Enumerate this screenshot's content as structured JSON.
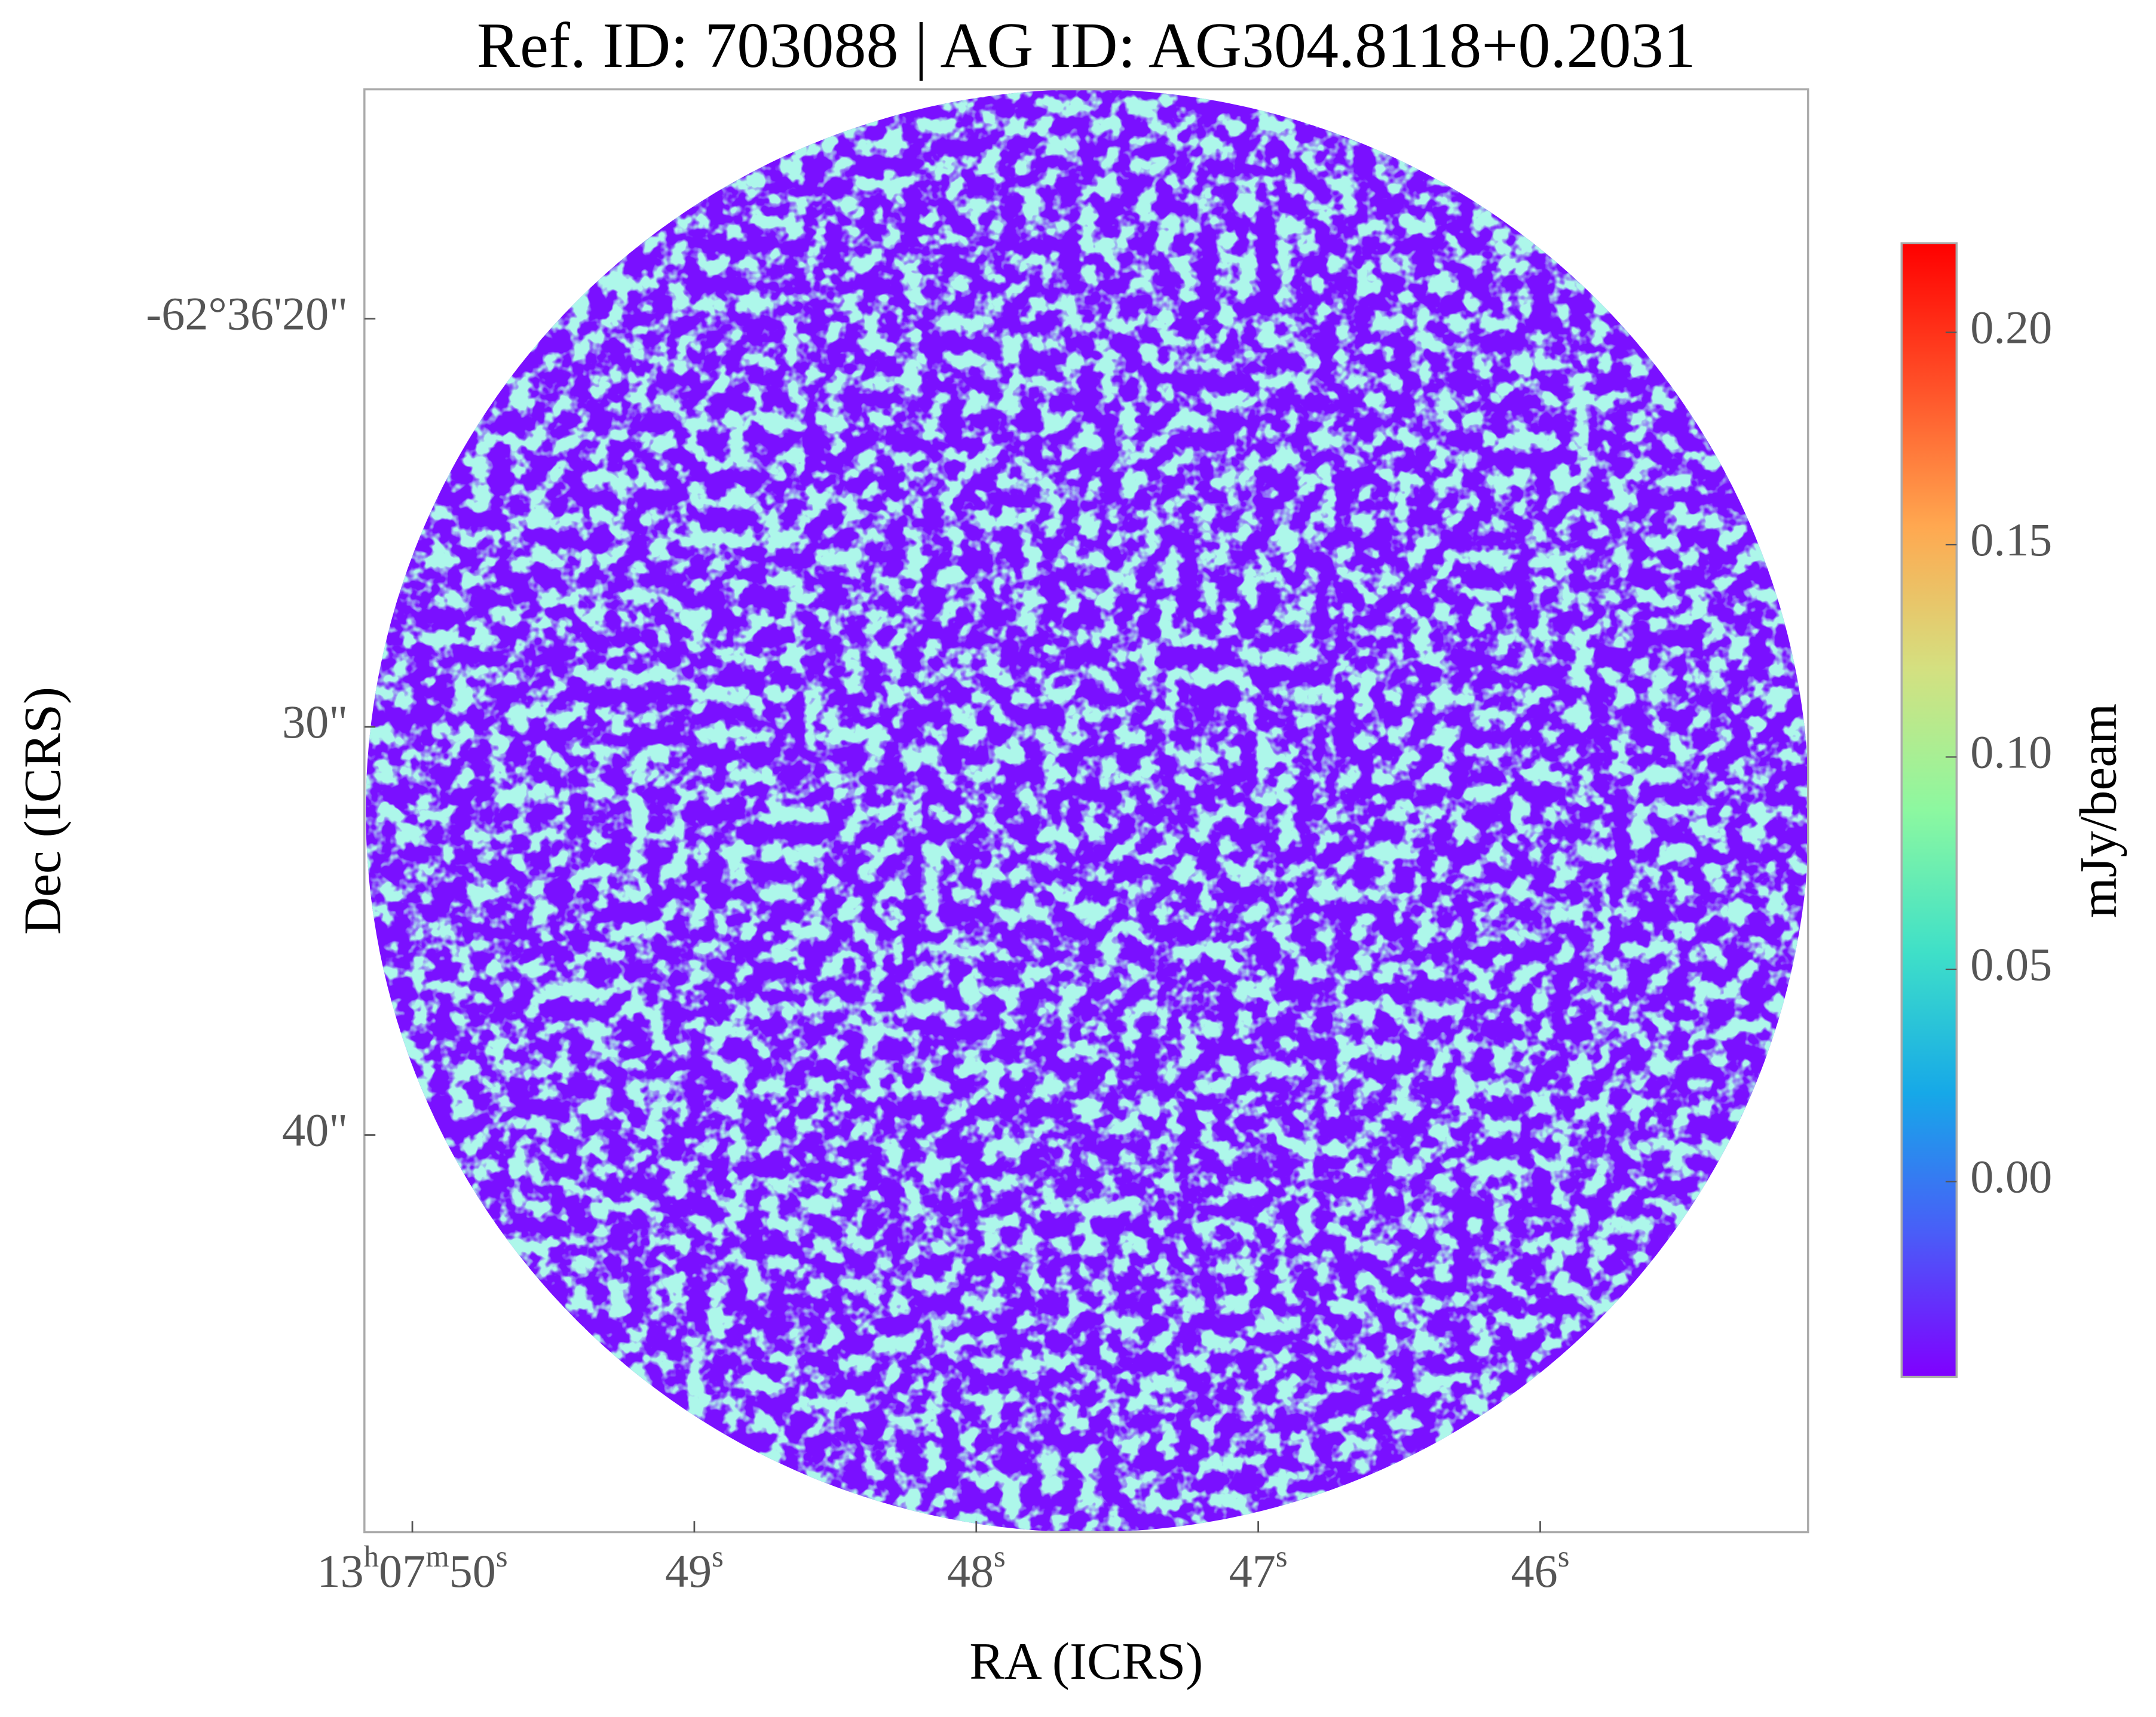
{
  "chart_data": {
    "type": "image",
    "title": "Ref. ID: 703088 | AG ID: AG304.8118+0.2031",
    "xlabel": "RA (ICRS)",
    "ylabel": "Dec (ICRS)",
    "xlim": [
      50.17,
      45.05
    ],
    "xticks": [
      {
        "value": 50,
        "label": "13h07m50s"
      },
      {
        "value": 49,
        "label": "49s"
      },
      {
        "value": 48,
        "label": "48s"
      },
      {
        "value": 47,
        "label": "47s"
      },
      {
        "value": 46,
        "label": "46s"
      }
    ],
    "ylim": [
      14.38,
      49.73
    ],
    "yticks": [
      {
        "value": 20,
        "label": "-62°36'20\""
      },
      {
        "value": 30,
        "label": "30\""
      },
      {
        "value": 40,
        "label": "40\""
      }
    ],
    "colorbar": {
      "label": "mJy/beam",
      "clim": [
        -0.046,
        0.221
      ],
      "colors": [
        "#8000ff",
        "#4a5cf8",
        "#16a8e8",
        "#3fe0c8",
        "#8cf8a0",
        "#d4e080",
        "#ffa850",
        "#ff5028",
        "#ff0000"
      ],
      "ticks": [
        {
          "value": 0,
          "label": "0.00"
        },
        {
          "value": 0.05,
          "label": "0.05"
        },
        {
          "value": 0.1,
          "label": "0.10"
        },
        {
          "value": 0.15,
          "label": "0.15"
        },
        {
          "value": 0.2,
          "label": "0.20"
        }
      ]
    }
  }
}
